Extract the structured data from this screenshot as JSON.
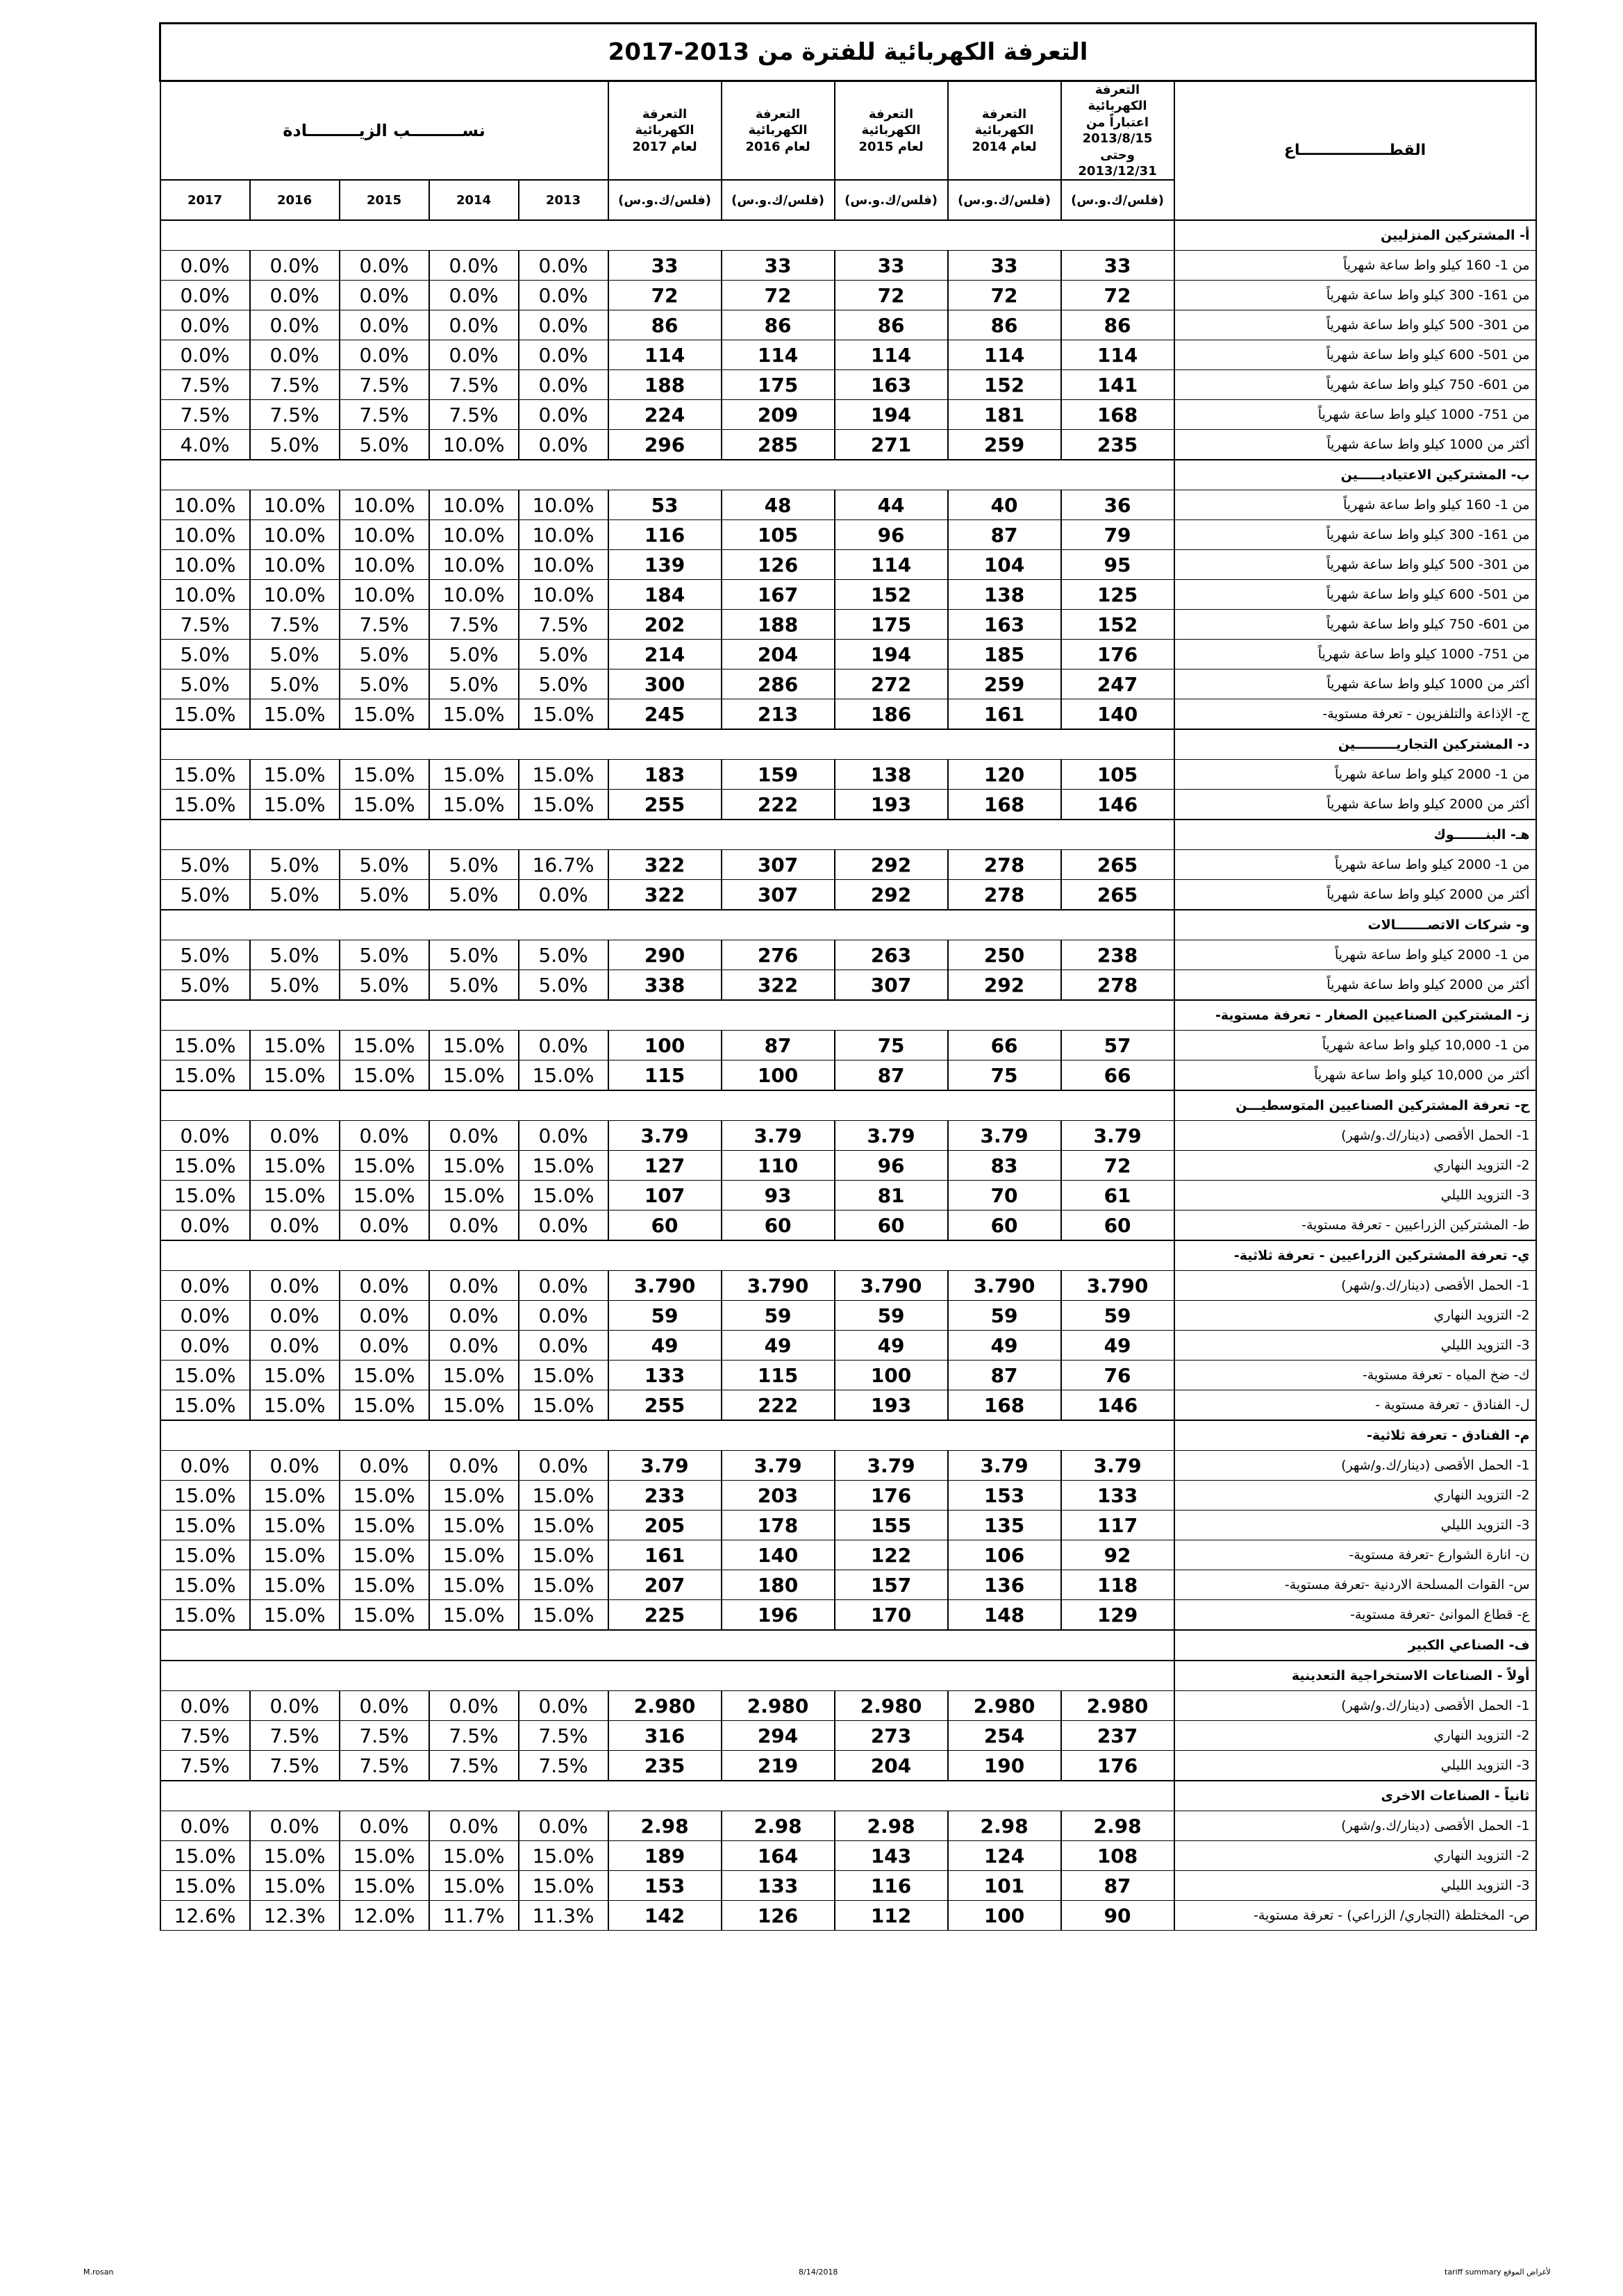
{
  "header": {
    "title": "التعرفة الكهربائية للفترة من 2013-2017",
    "sector_heading": "القطـــــــــــــــــاع",
    "tariff_headings": [
      "التعرفة الكهربائية\nاعتباراً من 2013/8/15\nوحتى 2013/12/31",
      "التعرفة الكهربائية\nلعام 2014",
      "التعرفة الكهربائية\nلعام 2015",
      "التعرفة الكهربائية\nلعام 2016",
      "التعرفة الكهربائية\nلعام 2017"
    ],
    "increase_heading": "نســـــــــب الزيـــــــــادة",
    "units": [
      "(فلس/ك.و.س)",
      "(فلس/ك.و.س)",
      "(فلس/ك.و.س)",
      "(فلس/ك.و.س)",
      "(فلس/ك.و.س)"
    ],
    "years": [
      "2013",
      "2014",
      "2015",
      "2016",
      "2017"
    ]
  },
  "rows": [
    {
      "section": "أ- المشتركين المنزليين"
    },
    {
      "label": "من 1- 160 كيلو واط ساعة شهرياً",
      "tariffs": [
        "33",
        "33",
        "33",
        "33",
        "33"
      ],
      "increases": [
        "0.0%",
        "0.0%",
        "0.0%",
        "0.0%",
        "0.0%"
      ]
    },
    {
      "label": "من 161- 300 كيلو واط ساعة شهرياً",
      "tariffs": [
        "72",
        "72",
        "72",
        "72",
        "72"
      ],
      "increases": [
        "0.0%",
        "0.0%",
        "0.0%",
        "0.0%",
        "0.0%"
      ]
    },
    {
      "label": "من 301- 500 كيلو واط ساعة شهرياً",
      "tariffs": [
        "86",
        "86",
        "86",
        "86",
        "86"
      ],
      "increases": [
        "0.0%",
        "0.0%",
        "0.0%",
        "0.0%",
        "0.0%"
      ]
    },
    {
      "label": "من 501- 600 كيلو واط ساعة شهرياً",
      "tariffs": [
        "114",
        "114",
        "114",
        "114",
        "114"
      ],
      "increases": [
        "0.0%",
        "0.0%",
        "0.0%",
        "0.0%",
        "0.0%"
      ]
    },
    {
      "label": "من 601- 750 كيلو واط ساعة شهرياً",
      "tariffs": [
        "141",
        "152",
        "163",
        "175",
        "188"
      ],
      "increases": [
        "0.0%",
        "7.5%",
        "7.5%",
        "7.5%",
        "7.5%"
      ]
    },
    {
      "label": "من 751- 1000 كيلو واط ساعة شهرياً",
      "tariffs": [
        "168",
        "181",
        "194",
        "209",
        "224"
      ],
      "increases": [
        "0.0%",
        "7.5%",
        "7.5%",
        "7.5%",
        "7.5%"
      ]
    },
    {
      "label": "أكثر من 1000 كيلو واط ساعة شهرياً",
      "tariffs": [
        "235",
        "259",
        "271",
        "285",
        "296"
      ],
      "increases": [
        "0.0%",
        "10.0%",
        "5.0%",
        "5.0%",
        "4.0%"
      ]
    },
    {
      "section": "ب- المشتركين الاعتياديـــــين"
    },
    {
      "label": "من 1- 160 كيلو واط ساعة شهرياً",
      "tariffs": [
        "36",
        "40",
        "44",
        "48",
        "53"
      ],
      "increases": [
        "10.0%",
        "10.0%",
        "10.0%",
        "10.0%",
        "10.0%"
      ]
    },
    {
      "label": "من 161- 300 كيلو واط ساعة شهرياً",
      "tariffs": [
        "79",
        "87",
        "96",
        "105",
        "116"
      ],
      "increases": [
        "10.0%",
        "10.0%",
        "10.0%",
        "10.0%",
        "10.0%"
      ]
    },
    {
      "label": "من 301- 500 كيلو واط ساعة شهرياً",
      "tariffs": [
        "95",
        "104",
        "114",
        "126",
        "139"
      ],
      "increases": [
        "10.0%",
        "10.0%",
        "10.0%",
        "10.0%",
        "10.0%"
      ]
    },
    {
      "label": "من 501- 600 كيلو واط ساعة شهرياً",
      "tariffs": [
        "125",
        "138",
        "152",
        "167",
        "184"
      ],
      "increases": [
        "10.0%",
        "10.0%",
        "10.0%",
        "10.0%",
        "10.0%"
      ]
    },
    {
      "label": "من 601- 750 كيلو واط ساعة شهرياً",
      "tariffs": [
        "152",
        "163",
        "175",
        "188",
        "202"
      ],
      "increases": [
        "7.5%",
        "7.5%",
        "7.5%",
        "7.5%",
        "7.5%"
      ]
    },
    {
      "label": "من 751- 1000 كيلو واط ساعة شهرياً",
      "tariffs": [
        "176",
        "185",
        "194",
        "204",
        "214"
      ],
      "increases": [
        "5.0%",
        "5.0%",
        "5.0%",
        "5.0%",
        "5.0%"
      ]
    },
    {
      "label": "أكثر من 1000 كيلو واط ساعة شهرياً",
      "tariffs": [
        "247",
        "259",
        "272",
        "286",
        "300"
      ],
      "increases": [
        "5.0%",
        "5.0%",
        "5.0%",
        "5.0%",
        "5.0%"
      ]
    },
    {
      "label": "ج- الإذاعة والتلفزيون - تعرفة مستوية-",
      "tariffs": [
        "140",
        "161",
        "186",
        "213",
        "245"
      ],
      "increases": [
        "15.0%",
        "15.0%",
        "15.0%",
        "15.0%",
        "15.0%"
      ]
    },
    {
      "section": "د- المشتركين التجاريـــــــــين"
    },
    {
      "label": "من 1- 2000 كيلو واط ساعة شهرياً",
      "tariffs": [
        "105",
        "120",
        "138",
        "159",
        "183"
      ],
      "increases": [
        "15.0%",
        "15.0%",
        "15.0%",
        "15.0%",
        "15.0%"
      ]
    },
    {
      "label": "أكثر من 2000 كيلو واط ساعة شهرياً",
      "tariffs": [
        "146",
        "168",
        "193",
        "222",
        "255"
      ],
      "increases": [
        "15.0%",
        "15.0%",
        "15.0%",
        "15.0%",
        "15.0%"
      ]
    },
    {
      "section": "هـ- البنـــــــوك"
    },
    {
      "label": "من 1- 2000 كيلو واط ساعة شهرياً",
      "tariffs": [
        "265",
        "278",
        "292",
        "307",
        "322"
      ],
      "increases": [
        "16.7%",
        "5.0%",
        "5.0%",
        "5.0%",
        "5.0%"
      ]
    },
    {
      "label": "أكثر من 2000 كيلو واط ساعة شهرياً",
      "tariffs": [
        "265",
        "278",
        "292",
        "307",
        "322"
      ],
      "increases": [
        "0.0%",
        "5.0%",
        "5.0%",
        "5.0%",
        "5.0%"
      ]
    },
    {
      "section": "و- شركات الاتصـــــــالات"
    },
    {
      "label": "من 1- 2000 كيلو واط ساعة شهرياً",
      "tariffs": [
        "238",
        "250",
        "263",
        "276",
        "290"
      ],
      "increases": [
        "5.0%",
        "5.0%",
        "5.0%",
        "5.0%",
        "5.0%"
      ]
    },
    {
      "label": "أكثر من 2000 كيلو واط ساعة شهرياً",
      "tariffs": [
        "278",
        "292",
        "307",
        "322",
        "338"
      ],
      "increases": [
        "5.0%",
        "5.0%",
        "5.0%",
        "5.0%",
        "5.0%"
      ]
    },
    {
      "section": "ز- المشتركين الصناعيين الصغار - تعرفة مستوية-"
    },
    {
      "label": "من 1- 10,000 كيلو واط ساعة شهرياً",
      "tariffs": [
        "57",
        "66",
        "75",
        "87",
        "100"
      ],
      "increases": [
        "0.0%",
        "15.0%",
        "15.0%",
        "15.0%",
        "15.0%"
      ]
    },
    {
      "label": "أكثر من 10,000 كيلو واط ساعة شهرياً",
      "tariffs": [
        "66",
        "75",
        "87",
        "100",
        "115"
      ],
      "increases": [
        "15.0%",
        "15.0%",
        "15.0%",
        "15.0%",
        "15.0%"
      ]
    },
    {
      "section": "ح- تعرفة المشتركين الصناعيين المتوسطيـــن"
    },
    {
      "label": "1- الحمل الأقصى (دينار/ك.و/شهر)",
      "tariffs": [
        "3.79",
        "3.79",
        "3.79",
        "3.79",
        "3.79"
      ],
      "increases": [
        "0.0%",
        "0.0%",
        "0.0%",
        "0.0%",
        "0.0%"
      ]
    },
    {
      "label": "2- التزويد النهاري",
      "tariffs": [
        "72",
        "83",
        "96",
        "110",
        "127"
      ],
      "increases": [
        "15.0%",
        "15.0%",
        "15.0%",
        "15.0%",
        "15.0%"
      ]
    },
    {
      "label": "3- التزويد الليلي",
      "tariffs": [
        "61",
        "70",
        "81",
        "93",
        "107"
      ],
      "increases": [
        "15.0%",
        "15.0%",
        "15.0%",
        "15.0%",
        "15.0%"
      ]
    },
    {
      "label": "ط- المشتركين الزراعيين - تعرفة مستوية-",
      "tariffs": [
        "60",
        "60",
        "60",
        "60",
        "60"
      ],
      "increases": [
        "0.0%",
        "0.0%",
        "0.0%",
        "0.0%",
        "0.0%"
      ]
    },
    {
      "section": "ي- تعرفة المشتركين الزراعيين - تعرفة ثلاثية-"
    },
    {
      "label": "1- الحمل الأقصى (دينار/ك.و/شهر)",
      "tariffs": [
        "3.790",
        "3.790",
        "3.790",
        "3.790",
        "3.790"
      ],
      "increases": [
        "0.0%",
        "0.0%",
        "0.0%",
        "0.0%",
        "0.0%"
      ]
    },
    {
      "label": "2- التزويد النهاري",
      "tariffs": [
        "59",
        "59",
        "59",
        "59",
        "59"
      ],
      "increases": [
        "0.0%",
        "0.0%",
        "0.0%",
        "0.0%",
        "0.0%"
      ]
    },
    {
      "label": "3- التزويد الليلي",
      "tariffs": [
        "49",
        "49",
        "49",
        "49",
        "49"
      ],
      "increases": [
        "0.0%",
        "0.0%",
        "0.0%",
        "0.0%",
        "0.0%"
      ]
    },
    {
      "label": "ك- ضخ المياه - تعرفة مستوية-",
      "tariffs": [
        "76",
        "87",
        "100",
        "115",
        "133"
      ],
      "increases": [
        "15.0%",
        "15.0%",
        "15.0%",
        "15.0%",
        "15.0%"
      ]
    },
    {
      "label": "ل- الفنادق - تعرفة مستوية -",
      "tariffs": [
        "146",
        "168",
        "193",
        "222",
        "255"
      ],
      "increases": [
        "15.0%",
        "15.0%",
        "15.0%",
        "15.0%",
        "15.0%"
      ]
    },
    {
      "section": "م- الفنادق - تعرفة ثلاثية-"
    },
    {
      "label": "1- الحمل الأقصى (دينار/ك.و/شهر)",
      "tariffs": [
        "3.79",
        "3.79",
        "3.79",
        "3.79",
        "3.79"
      ],
      "increases": [
        "0.0%",
        "0.0%",
        "0.0%",
        "0.0%",
        "0.0%"
      ]
    },
    {
      "label": "2- التزويد النهاري",
      "tariffs": [
        "133",
        "153",
        "176",
        "203",
        "233"
      ],
      "increases": [
        "15.0%",
        "15.0%",
        "15.0%",
        "15.0%",
        "15.0%"
      ]
    },
    {
      "label": "3- التزويد الليلي",
      "tariffs": [
        "117",
        "135",
        "155",
        "178",
        "205"
      ],
      "increases": [
        "15.0%",
        "15.0%",
        "15.0%",
        "15.0%",
        "15.0%"
      ]
    },
    {
      "label": "ن- انارة الشوارع -تعرفة مستوية-",
      "tariffs": [
        "92",
        "106",
        "122",
        "140",
        "161"
      ],
      "increases": [
        "15.0%",
        "15.0%",
        "15.0%",
        "15.0%",
        "15.0%"
      ]
    },
    {
      "label": "س- القوات المسلحة الاردنية -تعرفة مستوية-",
      "tariffs": [
        "118",
        "136",
        "157",
        "180",
        "207"
      ],
      "increases": [
        "15.0%",
        "15.0%",
        "15.0%",
        "15.0%",
        "15.0%"
      ]
    },
    {
      "label": "ع- قطاع الموانئ -تعرفة مستوية-",
      "tariffs": [
        "129",
        "148",
        "170",
        "196",
        "225"
      ],
      "increases": [
        "15.0%",
        "15.0%",
        "15.0%",
        "15.0%",
        "15.0%"
      ]
    },
    {
      "section": "ف- الصناعي الكبير"
    },
    {
      "section": "أولاً - الصناعات الاستخراجية التعدينية"
    },
    {
      "label": "1- الحمل الأقصى (دينار/ك.و/شهر)",
      "tariffs": [
        "2.980",
        "2.980",
        "2.980",
        "2.980",
        "2.980"
      ],
      "increases": [
        "0.0%",
        "0.0%",
        "0.0%",
        "0.0%",
        "0.0%"
      ]
    },
    {
      "label": "2- التزويد النهاري",
      "tariffs": [
        "237",
        "254",
        "273",
        "294",
        "316"
      ],
      "increases": [
        "7.5%",
        "7.5%",
        "7.5%",
        "7.5%",
        "7.5%"
      ]
    },
    {
      "label": "3- التزويد الليلي",
      "tariffs": [
        "176",
        "190",
        "204",
        "219",
        "235"
      ],
      "increases": [
        "7.5%",
        "7.5%",
        "7.5%",
        "7.5%",
        "7.5%"
      ]
    },
    {
      "section": "ثانياً - الصناعات الاخرى"
    },
    {
      "label": "1- الحمل الأقصى (دينار/ك.و/شهر)",
      "tariffs": [
        "2.98",
        "2.98",
        "2.98",
        "2.98",
        "2.98"
      ],
      "increases": [
        "0.0%",
        "0.0%",
        "0.0%",
        "0.0%",
        "0.0%"
      ]
    },
    {
      "label": "2- التزويد النهاري",
      "tariffs": [
        "108",
        "124",
        "143",
        "164",
        "189"
      ],
      "increases": [
        "15.0%",
        "15.0%",
        "15.0%",
        "15.0%",
        "15.0%"
      ]
    },
    {
      "label": "3- التزويد الليلي",
      "tariffs": [
        "87",
        "101",
        "116",
        "133",
        "153"
      ],
      "increases": [
        "15.0%",
        "15.0%",
        "15.0%",
        "15.0%",
        "15.0%"
      ]
    },
    {
      "label": "ص- المختلطة (التجاري/ الزراعي) - تعرفة مستوية-",
      "tariffs": [
        "90",
        "100",
        "112",
        "126",
        "142"
      ],
      "increases": [
        "11.3%",
        "11.7%",
        "12.0%",
        "12.3%",
        "12.6%"
      ]
    }
  ],
  "footer": {
    "left": "M.rosan",
    "center": "8/14/2018",
    "right": "tariff summary لأغراض الموقع"
  }
}
